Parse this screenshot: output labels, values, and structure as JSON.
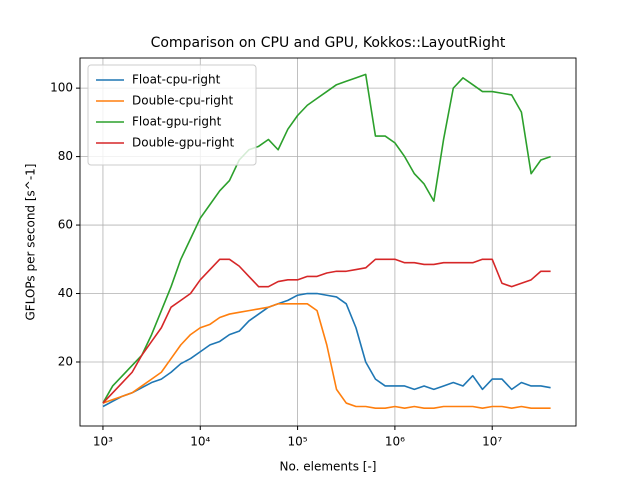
{
  "chart_data": {
    "type": "line",
    "title": "Comparison on CPU and GPU, Kokkos::LayoutRight",
    "x_label": "No. elements [-]",
    "y_label": "GFLOPs per second [s^-1]",
    "x_scale": "log",
    "grid": true,
    "legend_position": "upper-left",
    "x": [
      1000,
      1259,
      1585,
      1995,
      2512,
      3162,
      3981,
      5012,
      6310,
      7943,
      10000,
      12589,
      15849,
      19953,
      25119,
      31623,
      39811,
      50119,
      63096,
      79433,
      100000,
      125893,
      158489,
      199526,
      251189,
      316228,
      398107,
      501187,
      630957,
      794328,
      1000000,
      1258925,
      1584893,
      1995262,
      2511886,
      3162278,
      3981072,
      5011872,
      6309573,
      7943282,
      10000000,
      12589254,
      15848932,
      19952623,
      25118864,
      31622777,
      39810717
    ],
    "series": [
      {
        "name": "Float-cpu-right",
        "color": "#1f77b4",
        "values": [
          7,
          8.5,
          10,
          11,
          12.5,
          14,
          15,
          17,
          19.5,
          21,
          23,
          25,
          26,
          28,
          29,
          32,
          34,
          36,
          37,
          38,
          39.5,
          40,
          40,
          39.5,
          39,
          37,
          30,
          20,
          15,
          13,
          13,
          13,
          12,
          13,
          12,
          13,
          14,
          13,
          16,
          12,
          15,
          15,
          12,
          14,
          13,
          13,
          12.5
        ]
      },
      {
        "name": "Double-cpu-right",
        "color": "#ff7f0e",
        "values": [
          8,
          9,
          10,
          11,
          13,
          15,
          17,
          21,
          25,
          28,
          30,
          31,
          33,
          34,
          34.5,
          35,
          35.5,
          36,
          37,
          37,
          37,
          37,
          35,
          25,
          12,
          8,
          7,
          7,
          6.5,
          6.5,
          7,
          6.5,
          7,
          6.5,
          6.5,
          7,
          7,
          7,
          7,
          6.5,
          7,
          7,
          6.5,
          7,
          6.5,
          6.5,
          6.5
        ]
      },
      {
        "name": "Float-gpu-right",
        "color": "#2ca02c",
        "values": [
          8,
          13,
          16,
          19,
          22,
          28,
          35,
          42,
          50,
          56,
          62,
          66,
          70,
          73,
          79,
          82,
          83,
          85,
          82,
          88,
          92,
          95,
          97,
          99,
          101,
          102,
          103,
          104,
          86,
          86,
          84,
          80,
          75,
          72,
          67,
          85,
          100,
          103,
          101,
          99,
          99,
          98.5,
          98,
          93,
          75,
          79,
          80
        ]
      },
      {
        "name": "Double-gpu-right",
        "color": "#d62728",
        "values": [
          8,
          11,
          14,
          17,
          22,
          26,
          30,
          36,
          38,
          40,
          44,
          47,
          50,
          50,
          48,
          45,
          42,
          42,
          43.5,
          44,
          44,
          45,
          45,
          46,
          46.5,
          46.5,
          47,
          47.5,
          50,
          50,
          50,
          49,
          49,
          48.5,
          48.5,
          49,
          49,
          49,
          49,
          50,
          50,
          43,
          42,
          43,
          44,
          46.5,
          46.5
        ]
      }
    ],
    "xlim": [
      581,
      72600000
    ],
    "ylim": [
      1.3,
      108.8
    ],
    "xticks": [
      {
        "value": 1000,
        "label": "10³"
      },
      {
        "value": 10000,
        "label": "10⁴"
      },
      {
        "value": 100000,
        "label": "10⁵"
      },
      {
        "value": 1000000,
        "label": "10⁶"
      },
      {
        "value": 10000000,
        "label": "10⁷"
      }
    ],
    "yticks": [
      20,
      40,
      60,
      80,
      100
    ]
  }
}
